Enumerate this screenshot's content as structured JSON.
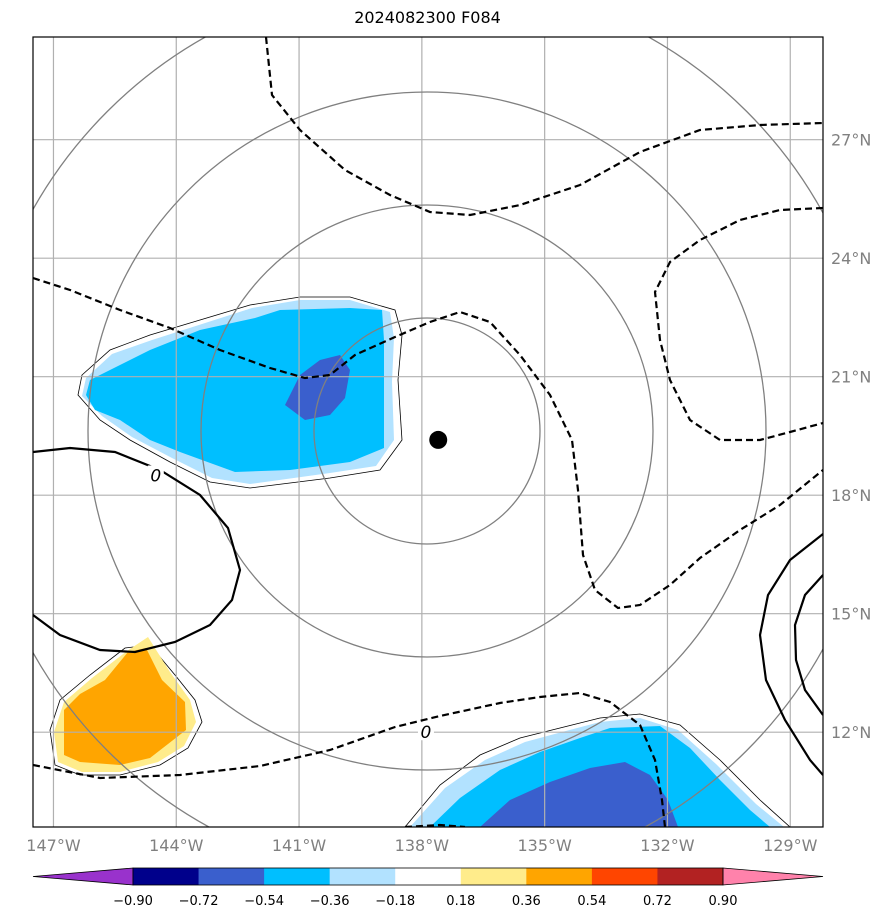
{
  "title": "2024082300 F084",
  "map": {
    "projection": "lat-lon",
    "lon_range": [
      -147.5,
      -128.2
    ],
    "lat_range": [
      9.6,
      29.6
    ],
    "center_marker": {
      "lon": -137.6,
      "lat": 19.4
    },
    "range_ring_color": "#808080",
    "gridline_color": "#b0b0b0",
    "contour_color": "#000000",
    "lat_ticks": [
      {
        "value": 12,
        "label": "12°N"
      },
      {
        "value": 15,
        "label": "15°N"
      },
      {
        "value": 18,
        "label": "18°N"
      },
      {
        "value": 21,
        "label": "21°N"
      },
      {
        "value": 24,
        "label": "24°N"
      },
      {
        "value": 27,
        "label": "27°N"
      }
    ],
    "lon_ticks": [
      {
        "value": -147,
        "label": "147°W"
      },
      {
        "value": -144,
        "label": "144°W"
      },
      {
        "value": -141,
        "label": "141°W"
      },
      {
        "value": -138,
        "label": "138°W"
      },
      {
        "value": -135,
        "label": "135°W"
      },
      {
        "value": -132,
        "label": "132°W"
      },
      {
        "value": -129,
        "label": "129°W"
      }
    ],
    "contour_labels": [
      {
        "text": "0",
        "lon": -144.5,
        "lat": 18.5
      },
      {
        "text": "0",
        "lon": -137.9,
        "lat": 12.0
      }
    ]
  },
  "colorbar": {
    "colors": [
      "#9932cc",
      "#00008b",
      "#3a5fcd",
      "#00bfff",
      "#b2e2ff",
      "#ffffff",
      "#ffec8b",
      "#ffa500",
      "#ff4500",
      "#b22222",
      "#ff82ab"
    ],
    "tick_labels": [
      "−0.90",
      "−0.72",
      "−0.54",
      "−0.36",
      "−0.18",
      "0.18",
      "0.36",
      "0.54",
      "0.72",
      "0.90"
    ]
  }
}
